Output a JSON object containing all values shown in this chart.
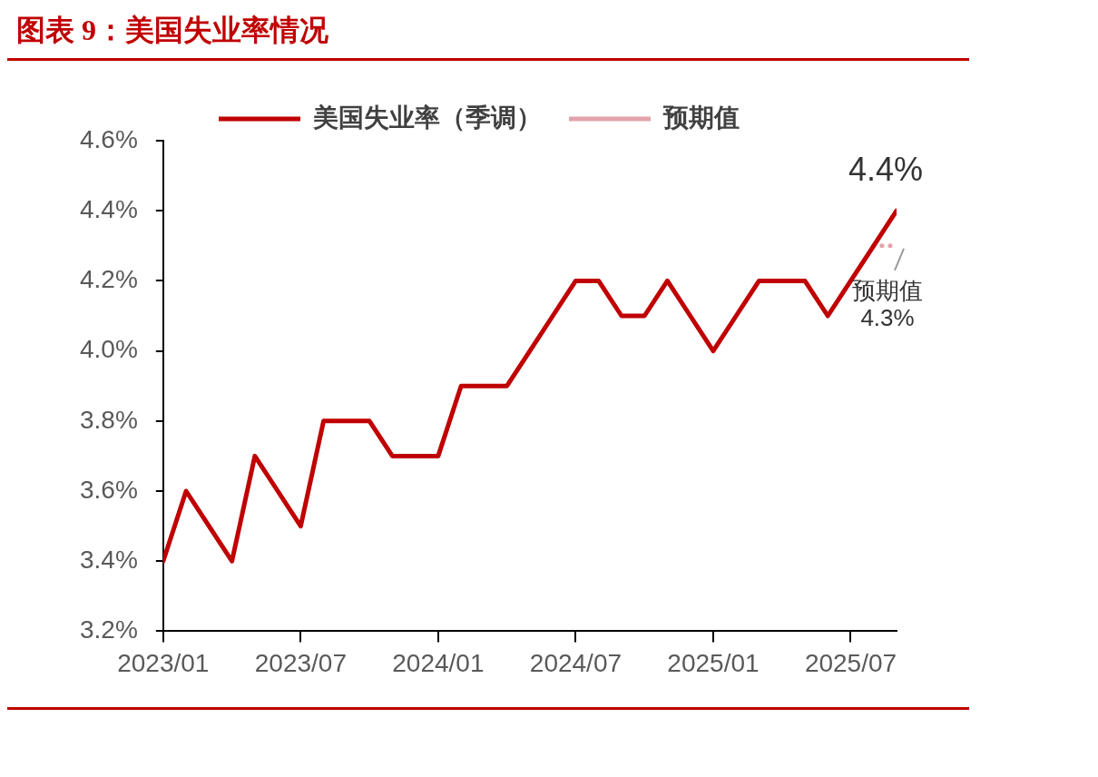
{
  "chart_data": {
    "type": "line",
    "title": "图表 9：美国失业率情况",
    "x": [
      "2023-01",
      "2023-02",
      "2023-03",
      "2023-04",
      "2023-05",
      "2023-06",
      "2023-07",
      "2023-08",
      "2023-09",
      "2023-10",
      "2023-11",
      "2023-12",
      "2024-01",
      "2024-02",
      "2024-03",
      "2024-04",
      "2024-05",
      "2024-06",
      "2024-07",
      "2024-08",
      "2024-09",
      "2024-10",
      "2024-11",
      "2024-12",
      "2025-01",
      "2025-02",
      "2025-03",
      "2025-04",
      "2025-05",
      "2025-06",
      "2025-07",
      "2025-08",
      "2025-09"
    ],
    "series": [
      {
        "name": "美国失业率（季调）",
        "color": "#c00000",
        "line_style": "solid",
        "values": [
          3.4,
          3.6,
          3.5,
          3.4,
          3.7,
          3.6,
          3.5,
          3.8,
          3.8,
          3.8,
          3.7,
          3.7,
          3.7,
          3.9,
          3.9,
          3.9,
          4.0,
          4.1,
          4.2,
          4.2,
          4.1,
          4.1,
          4.2,
          4.1,
          4.0,
          4.1,
          4.2,
          4.2,
          4.2,
          4.1,
          4.2,
          4.3,
          4.4
        ],
        "value_labels": [
          null,
          null,
          null,
          null,
          null,
          null,
          null,
          null,
          null,
          null,
          null,
          null,
          null,
          null,
          null,
          null,
          null,
          null,
          null,
          null,
          null,
          null,
          null,
          null,
          null,
          null,
          null,
          null,
          null,
          null,
          null,
          null,
          "4.4%"
        ]
      },
      {
        "name": "预期值",
        "color": "#e3a3ab",
        "line_style": "dotted",
        "x": [
          "2025-08",
          "2025-09"
        ],
        "values": [
          4.3,
          4.3
        ]
      }
    ],
    "annotations": [
      {
        "text": "预期值\n4.3%",
        "x": "2025-09",
        "y": 4.3
      }
    ],
    "xlim": [
      "2023-01",
      "2025-09"
    ],
    "xticks": [
      {
        "value": "2023-01",
        "label": "2023/01"
      },
      {
        "value": "2023-07",
        "label": "2023/07"
      },
      {
        "value": "2024-01",
        "label": "2024/01"
      },
      {
        "value": "2024-07",
        "label": "2024/07"
      },
      {
        "value": "2025-01",
        "label": "2025/01"
      },
      {
        "value": "2025-07",
        "label": "2025/07"
      }
    ],
    "ylim": [
      3.2,
      4.6
    ],
    "yticks": [
      {
        "value": 3.2,
        "label": "3.2%"
      },
      {
        "value": 3.4,
        "label": "3.4%"
      },
      {
        "value": 3.6,
        "label": "3.6%"
      },
      {
        "value": 3.8,
        "label": "3.8%"
      },
      {
        "value": 4.0,
        "label": "4.0%"
      },
      {
        "value": 4.2,
        "label": "4.2%"
      },
      {
        "value": 4.4,
        "label": "4.4%"
      },
      {
        "value": 4.6,
        "label": "4.6%"
      }
    ],
    "grid": false,
    "legend": "top",
    "marker": "none"
  }
}
